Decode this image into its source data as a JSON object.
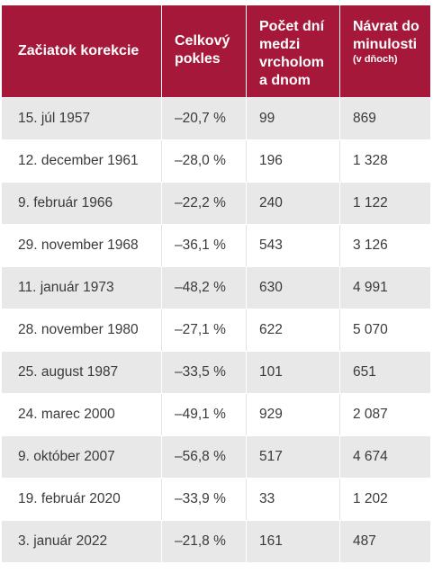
{
  "header": {
    "col1": "Začiatok korekcie",
    "col2": "Celkový pokles",
    "col3": "Počet dní medzi vrcholom a dnom",
    "col4": "Návrat do minulosti",
    "col4_sub": "(v dňoch)"
  },
  "rows": [
    {
      "start": "15. júl 1957",
      "decline": "–20,7 %",
      "days_peak_trough": "99",
      "days_recovery": "869"
    },
    {
      "start": "12. december 1961",
      "decline": "–28,0 %",
      "days_peak_trough": "196",
      "days_recovery": "1 328"
    },
    {
      "start": "9. február 1966",
      "decline": "–22,2 %",
      "days_peak_trough": "240",
      "days_recovery": "1 122"
    },
    {
      "start": "29. november 1968",
      "decline": "–36,1 %",
      "days_peak_trough": "543",
      "days_recovery": "3 126"
    },
    {
      "start": "11. január 1973",
      "decline": "–48,2 %",
      "days_peak_trough": "630",
      "days_recovery": "4 991"
    },
    {
      "start": "28. november 1980",
      "decline": "–27,1 %",
      "days_peak_trough": "622",
      "days_recovery": "5 070"
    },
    {
      "start": "25. august 1987",
      "decline": "–33,5 %",
      "days_peak_trough": "101",
      "days_recovery": "651"
    },
    {
      "start": "24. marec 2000",
      "decline": "–49,1 %",
      "days_peak_trough": "929",
      "days_recovery": "2 087"
    },
    {
      "start": "9. október 2007",
      "decline": "–56,8 %",
      "days_peak_trough": "517",
      "days_recovery": "4 674"
    },
    {
      "start": "19. február 2020",
      "decline": "–33,9 %",
      "days_peak_trough": "33",
      "days_recovery": "1 202"
    },
    {
      "start": "3. január 2022",
      "decline": "–21,8 %",
      "days_peak_trough": "161",
      "days_recovery": "487"
    }
  ],
  "colors": {
    "header_bg": "#a5183a",
    "header_text": "#ffffff",
    "row_shade": "#e8e8e8",
    "row_plain": "#ffffff",
    "body_text": "#3a3a3a"
  }
}
